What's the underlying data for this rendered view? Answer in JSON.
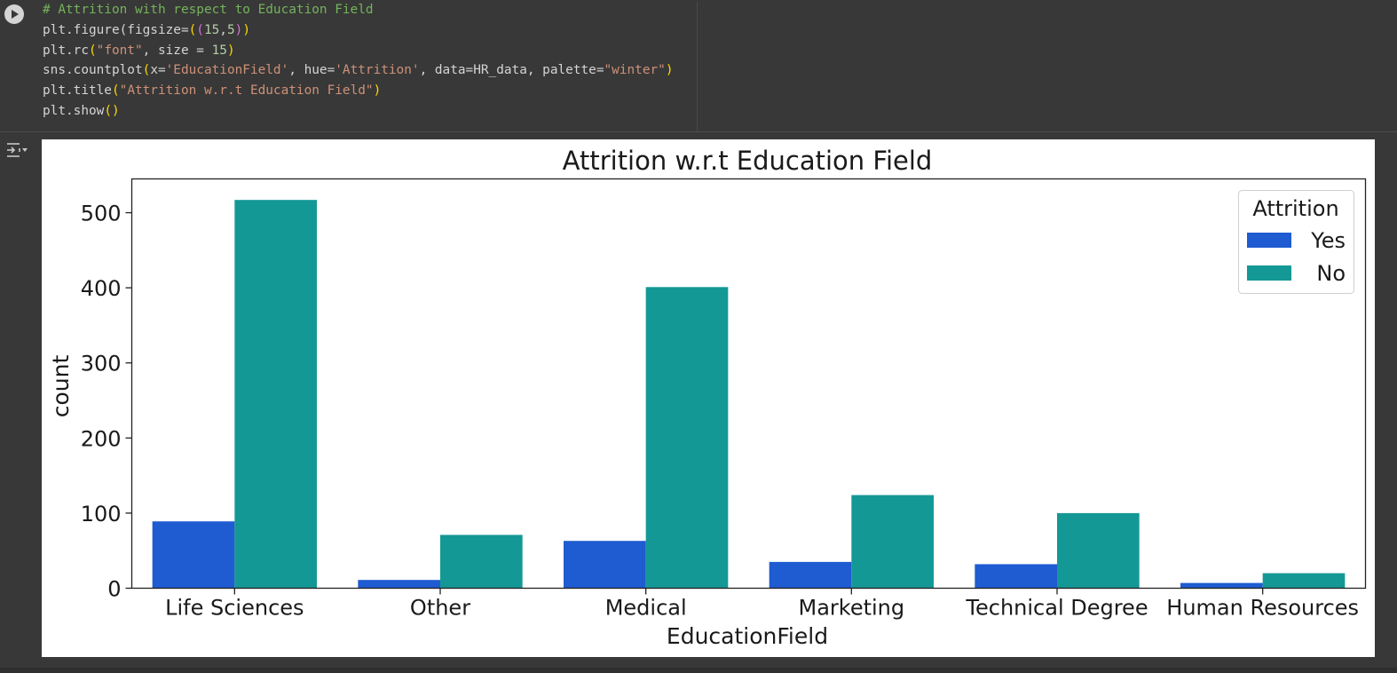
{
  "code": {
    "comment": "# Attrition with respect to Education Field",
    "line2": {
      "a": "plt.figure(figsize=",
      "b": "15",
      "c": ",",
      "d": "5"
    },
    "line3": {
      "a": "plt.rc",
      "b": "\"font\"",
      "c": ", size = ",
      "d": "15"
    },
    "line4": {
      "a": "sns.countplot",
      "b": "x=",
      "c": "'EducationField'",
      "d": ", hue=",
      "e": "'Attrition'",
      "f": ", data=HR_data, palette=",
      "g": "\"winter\""
    },
    "line5": {
      "a": "plt.title",
      "b": "\"Attrition w.r.t Education Field\""
    },
    "line6": {
      "a": "plt.show"
    }
  },
  "icons": {
    "run": "play-circle-icon",
    "output_toggle": "output-collapse-icon"
  },
  "colors": {
    "yes": "#1f5bd1",
    "no": "#149896"
  },
  "chart_data": {
    "type": "bar",
    "title": "Attrition w.r.t Education Field",
    "xlabel": "EducationField",
    "ylabel": "count",
    "categories": [
      "Life Sciences",
      "Other",
      "Medical",
      "Marketing",
      "Technical Degree",
      "Human Resources"
    ],
    "series": [
      {
        "name": "Yes",
        "values": [
          89,
          11,
          63,
          35,
          32,
          7
        ]
      },
      {
        "name": "No",
        "values": [
          517,
          71,
          401,
          124,
          100,
          20
        ]
      }
    ],
    "yticks": [
      "0",
      "100",
      "200",
      "300",
      "400",
      "500"
    ],
    "ylim": [
      0,
      545
    ],
    "legend": {
      "title": "Attrition",
      "position": "top-right"
    },
    "grid": false
  }
}
